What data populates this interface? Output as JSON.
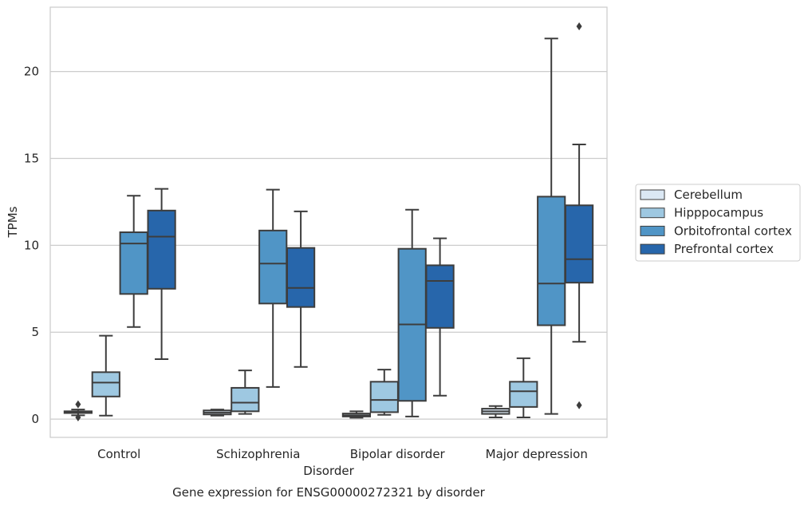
{
  "chart_data": {
    "type": "box",
    "title": "",
    "caption": "Gene expression for ENSG00000272321 by disorder",
    "xlabel": "Disorder",
    "ylabel": "TPMs",
    "ylim": [
      -1.05,
      23.7
    ],
    "yticks": [
      0,
      5,
      10,
      15,
      20
    ],
    "grid": "horizontal",
    "legend_position": "right",
    "categories": [
      "Control",
      "Schizophrenia",
      "Bipolar disorder",
      "Major depression"
    ],
    "series": [
      {
        "name": "Cerebellum",
        "color": "#dbe8f4",
        "boxes": [
          {
            "whislo": 0.22,
            "q1": 0.35,
            "median": 0.4,
            "q3": 0.45,
            "whishi": 0.55,
            "fliers": [
              0.1,
              0.85
            ]
          },
          {
            "whislo": 0.2,
            "q1": 0.27,
            "median": 0.38,
            "q3": 0.5,
            "whishi": 0.55,
            "fliers": []
          },
          {
            "whislo": 0.08,
            "q1": 0.15,
            "median": 0.22,
            "q3": 0.32,
            "whishi": 0.45,
            "fliers": []
          },
          {
            "whislo": 0.1,
            "q1": 0.3,
            "median": 0.45,
            "q3": 0.6,
            "whishi": 0.75,
            "fliers": []
          }
        ]
      },
      {
        "name": "Hipppocampus",
        "color": "#9ec8e1",
        "boxes": [
          {
            "whislo": 0.2,
            "q1": 1.3,
            "median": 2.1,
            "q3": 2.7,
            "whishi": 4.8,
            "fliers": []
          },
          {
            "whislo": 0.3,
            "q1": 0.45,
            "median": 0.95,
            "q3": 1.8,
            "whishi": 2.8,
            "fliers": []
          },
          {
            "whislo": 0.25,
            "q1": 0.4,
            "median": 1.1,
            "q3": 2.15,
            "whishi": 2.85,
            "fliers": []
          },
          {
            "whislo": 0.1,
            "q1": 0.7,
            "median": 1.6,
            "q3": 2.15,
            "whishi": 3.5,
            "fliers": []
          }
        ]
      },
      {
        "name": "Orbitofrontal cortex",
        "color": "#5095c6",
        "boxes": [
          {
            "whislo": 5.3,
            "q1": 7.2,
            "median": 10.1,
            "q3": 10.75,
            "whishi": 12.85,
            "fliers": []
          },
          {
            "whislo": 1.85,
            "q1": 6.65,
            "median": 8.95,
            "q3": 10.85,
            "whishi": 13.2,
            "fliers": []
          },
          {
            "whislo": 0.15,
            "q1": 1.05,
            "median": 5.45,
            "q3": 9.8,
            "whishi": 12.05,
            "fliers": []
          },
          {
            "whislo": 0.3,
            "q1": 5.4,
            "median": 7.8,
            "q3": 12.8,
            "whishi": 21.9,
            "fliers": []
          }
        ]
      },
      {
        "name": "Prefrontal cortex",
        "color": "#2766ab",
        "boxes": [
          {
            "whislo": 3.45,
            "q1": 7.5,
            "median": 10.5,
            "q3": 12.0,
            "whishi": 13.25,
            "fliers": []
          },
          {
            "whislo": 3.0,
            "q1": 6.45,
            "median": 7.55,
            "q3": 9.85,
            "whishi": 11.95,
            "fliers": []
          },
          {
            "whislo": 1.35,
            "q1": 5.25,
            "median": 7.95,
            "q3": 8.85,
            "whishi": 10.4,
            "fliers": []
          },
          {
            "whislo": 4.45,
            "q1": 7.85,
            "median": 9.2,
            "q3": 12.3,
            "whishi": 15.8,
            "fliers": [
              0.8,
              22.6
            ]
          }
        ]
      }
    ]
  }
}
